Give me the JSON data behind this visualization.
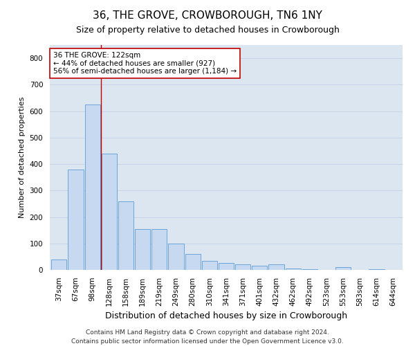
{
  "title": "36, THE GROVE, CROWBOROUGH, TN6 1NY",
  "subtitle": "Size of property relative to detached houses in Crowborough",
  "xlabel": "Distribution of detached houses by size in Crowborough",
  "ylabel": "Number of detached properties",
  "categories": [
    "37sqm",
    "67sqm",
    "98sqm",
    "128sqm",
    "158sqm",
    "189sqm",
    "219sqm",
    "249sqm",
    "280sqm",
    "310sqm",
    "341sqm",
    "371sqm",
    "401sqm",
    "432sqm",
    "462sqm",
    "492sqm",
    "523sqm",
    "553sqm",
    "583sqm",
    "614sqm",
    "644sqm"
  ],
  "values": [
    40,
    380,
    625,
    440,
    260,
    155,
    155,
    100,
    60,
    35,
    25,
    20,
    15,
    20,
    5,
    2,
    0,
    10,
    0,
    2,
    0
  ],
  "bar_color": "#c6d9f0",
  "bar_edge_color": "#5b9bd5",
  "grid_color": "#c8d4e8",
  "background_color": "#dce6f1",
  "vline_x_index": 2.5,
  "vline_color": "#c00000",
  "annotation_text": "36 THE GROVE: 122sqm\n← 44% of detached houses are smaller (927)\n56% of semi-detached houses are larger (1,184) →",
  "annotation_box_color": "#ffffff",
  "annotation_box_edge": "#c00000",
  "ylim": [
    0,
    850
  ],
  "yticks": [
    0,
    100,
    200,
    300,
    400,
    500,
    600,
    700,
    800
  ],
  "footnote": "Contains HM Land Registry data © Crown copyright and database right 2024.\nContains public sector information licensed under the Open Government Licence v3.0.",
  "title_fontsize": 11,
  "subtitle_fontsize": 9,
  "xlabel_fontsize": 9,
  "ylabel_fontsize": 8,
  "tick_fontsize": 7.5,
  "annotation_fontsize": 7.5,
  "footnote_fontsize": 6.5
}
